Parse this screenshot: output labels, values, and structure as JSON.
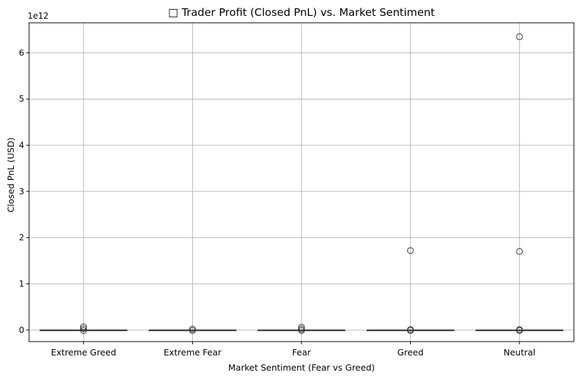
{
  "chart_data": {
    "type": "box",
    "title": "□ Trader Profit (Closed PnL) vs. Market Sentiment",
    "xlabel": "Market Sentiment (Fear vs Greed)",
    "ylabel": "Closed PnL (USD)",
    "y_offset_label": "1e12",
    "ylim": [
      -0.25,
      6.65
    ],
    "yticks": [
      0,
      1,
      2,
      3,
      4,
      5,
      6
    ],
    "categories": [
      "Extreme Greed",
      "Extreme Fear",
      "Fear",
      "Greed",
      "Neutral"
    ],
    "grid": true,
    "box_color": "#4c72b0",
    "line_color": "#333333",
    "boxes": [
      {
        "category": "Extreme Greed",
        "q1": 0,
        "median": 0,
        "q3": 0,
        "whisker_low": 0,
        "whisker_high": 0,
        "outliers": [
          0.07,
          0.03,
          -0.01
        ]
      },
      {
        "category": "Extreme Fear",
        "q1": 0,
        "median": 0,
        "q3": 0,
        "whisker_low": 0,
        "whisker_high": 0,
        "outliers": [
          0.02,
          -0.01
        ]
      },
      {
        "category": "Fear",
        "q1": 0,
        "median": 0,
        "q3": 0,
        "whisker_low": 0,
        "whisker_high": 0,
        "outliers": [
          0.06,
          0.02,
          -0.01
        ]
      },
      {
        "category": "Greed",
        "q1": 0,
        "median": 0,
        "q3": 0,
        "whisker_low": 0,
        "whisker_high": 0,
        "outliers": [
          1.72,
          0.01,
          -0.01
        ]
      },
      {
        "category": "Neutral",
        "q1": 0,
        "median": 0,
        "q3": 0,
        "whisker_low": 0,
        "whisker_high": 0,
        "outliers": [
          6.35,
          1.7,
          0.01,
          -0.01
        ]
      }
    ]
  }
}
